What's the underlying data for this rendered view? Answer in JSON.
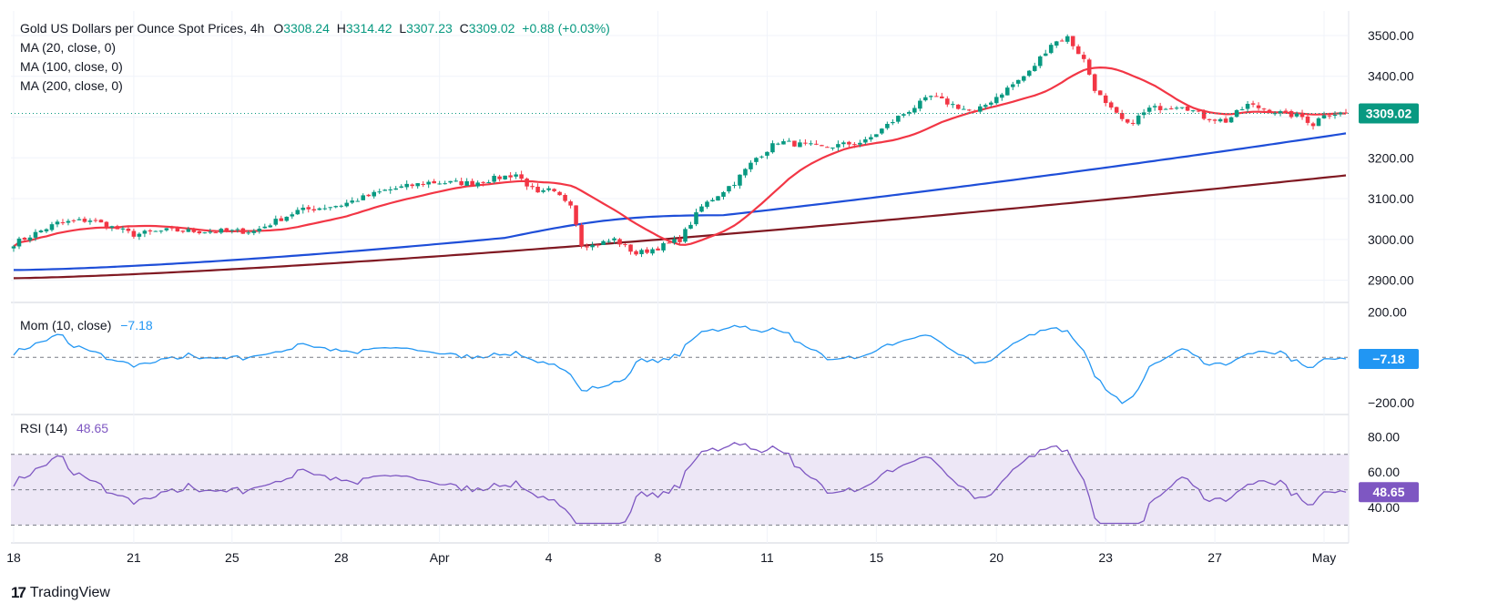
{
  "header": {
    "title": "Gold US Dollars per Ounce Spot Prices, 4h",
    "open_label": "O",
    "open": "3308.24",
    "high_label": "H",
    "high": "3314.42",
    "low_label": "L",
    "low": "3307.23",
    "close_label": "C",
    "close": "3309.02",
    "change": "+0.88 (+0.03%)",
    "ma_legend": [
      "MA (20, close, 0)",
      "MA (100, close, 0)",
      "MA (200, close, 0)"
    ],
    "mom_legend": "Mom (10, close)",
    "mom_value": "−7.18",
    "rsi_legend": "RSI (14)",
    "rsi_value": "48.65"
  },
  "branding": {
    "logo_text": "TradingView",
    "logo_mark": "17"
  },
  "colors": {
    "up": "#089981",
    "down": "#f23645",
    "ma20": "#f23645",
    "ma100": "#1e4ed8",
    "ma200": "#801922",
    "mom": "#2196f3",
    "rsi": "#7e57c2",
    "rsi_band": "#ede7f6"
  },
  "chart_data": [
    {
      "type": "candlestick",
      "title": "Gold US Dollars per Ounce Spot Prices, 4h",
      "ylim": [
        2850,
        3520
      ],
      "y_ticks": [
        "2900.00",
        "3000.00",
        "3100.00",
        "3200.00",
        "3300.00",
        "3400.00",
        "3500.00"
      ],
      "last_price_label": "3309.02",
      "x_ticks": [
        "18",
        "21",
        "25",
        "28",
        "Apr",
        "4",
        "8",
        "11",
        "15",
        "20",
        "23",
        "27",
        "May"
      ],
      "x_tick_index": [
        0,
        22,
        40,
        60,
        78,
        98,
        118,
        138,
        158,
        180,
        200,
        220,
        240
      ],
      "close_anchors": [
        [
          0,
          2990
        ],
        [
          8,
          3040
        ],
        [
          14,
          3048
        ],
        [
          22,
          3012
        ],
        [
          28,
          3022
        ],
        [
          34,
          3020
        ],
        [
          44,
          3020
        ],
        [
          52,
          3070
        ],
        [
          60,
          3085
        ],
        [
          68,
          3120
        ],
        [
          76,
          3140
        ],
        [
          84,
          3138
        ],
        [
          92,
          3160
        ],
        [
          96,
          3110
        ],
        [
          98,
          3120
        ],
        [
          102,
          3090
        ],
        [
          104,
          2990
        ],
        [
          106,
          2985
        ],
        [
          110,
          3000
        ],
        [
          114,
          2965
        ],
        [
          118,
          2980
        ],
        [
          122,
          3000
        ],
        [
          126,
          3080
        ],
        [
          132,
          3140
        ],
        [
          136,
          3200
        ],
        [
          140,
          3240
        ],
        [
          148,
          3225
        ],
        [
          156,
          3240
        ],
        [
          162,
          3300
        ],
        [
          168,
          3350
        ],
        [
          172,
          3330
        ],
        [
          176,
          3310
        ],
        [
          180,
          3350
        ],
        [
          186,
          3410
        ],
        [
          190,
          3480
        ],
        [
          193,
          3495
        ],
        [
          196,
          3440
        ],
        [
          198,
          3370
        ],
        [
          200,
          3330
        ],
        [
          204,
          3280
        ],
        [
          208,
          3320
        ],
        [
          214,
          3330
        ],
        [
          218,
          3300
        ],
        [
          222,
          3290
        ],
        [
          226,
          3330
        ],
        [
          232,
          3310
        ],
        [
          236,
          3300
        ],
        [
          238,
          3282
        ],
        [
          240,
          3309
        ]
      ],
      "series": [
        {
          "name": "MA (20, close, 0)"
        },
        {
          "name": "MA (100, close, 0)"
        },
        {
          "name": "MA (200, close, 0)"
        }
      ]
    },
    {
      "type": "line",
      "title": "Mom (10, close)",
      "ylim": [
        -240,
        230
      ],
      "y_ticks": [
        "200.00",
        "−200.00"
      ],
      "last_value_label": "−7.18",
      "zero_line": 0
    },
    {
      "type": "line",
      "title": "RSI (14)",
      "ylim": [
        23,
        91
      ],
      "y_ticks": [
        "40.00",
        "60.00",
        "80.00"
      ],
      "band": [
        30,
        70
      ],
      "mid_line": 50,
      "last_value_label": "48.65"
    }
  ]
}
